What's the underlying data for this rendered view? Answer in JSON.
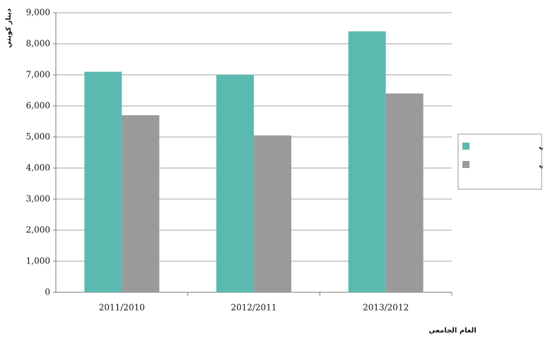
{
  "chart_data": {
    "type": "bar",
    "y_label": "دينار كويتي",
    "x_label": "العام الجامعي",
    "categories": [
      "2011/2010",
      "2012/2011",
      "2013/2012"
    ],
    "series": [
      {
        "name": "معدل الصرف الفعلي",
        "color": "#5bbab0",
        "values": [
          7100,
          7000,
          8400
        ]
      },
      {
        "name": "معدل الصرف المثالي",
        "color": "#9a9a9a",
        "values": [
          5700,
          5050,
          6400
        ]
      }
    ],
    "ylim": [
      0,
      9000
    ],
    "yticks": [
      0,
      {
        "value": 1000,
        "label": "1,000"
      },
      {
        "value": 2000,
        "label": "2,000"
      },
      {
        "value": 3000,
        "label": "3,000"
      },
      {
        "value": 4000,
        "label": "4,000"
      },
      {
        "value": 5000,
        "label": "5,000"
      },
      {
        "value": 6000,
        "label": "6,000"
      },
      {
        "value": 7000,
        "label": "7,000"
      },
      {
        "value": 8000,
        "label": "8,000"
      },
      {
        "value": 9000,
        "label": "9,000"
      }
    ],
    "grid": true
  }
}
